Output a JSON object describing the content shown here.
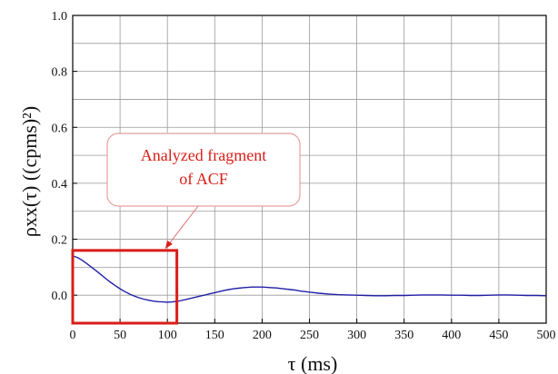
{
  "chart_data": {
    "type": "line",
    "xlim": [
      0,
      500
    ],
    "ylim": [
      -0.1,
      1.0
    ],
    "x_ticks": [
      0,
      50,
      100,
      150,
      200,
      250,
      300,
      350,
      400,
      450,
      500
    ],
    "x_tick_labels": [
      "0",
      "50",
      "100",
      "150",
      "200",
      "250",
      "300",
      "350",
      "400",
      "450",
      "500"
    ],
    "y_ticks": [
      0.0,
      0.2,
      0.4,
      0.6,
      0.8,
      1.0
    ],
    "y_tick_labels": [
      "0.0",
      "0.2",
      "0.4",
      "0.6",
      "0.8",
      "1.0"
    ],
    "grid": true,
    "xlabel": "τ (ms)",
    "ylabel": "ρxx(τ) ((cpms)²)",
    "series": [
      {
        "color": "#1f1fa8",
        "x": [
          0,
          5,
          10,
          15,
          20,
          25,
          30,
          35,
          40,
          45,
          50,
          55,
          60,
          65,
          70,
          75,
          80,
          85,
          90,
          95,
          100,
          105,
          110,
          115,
          120,
          125,
          130,
          135,
          140,
          145,
          150,
          155,
          160,
          165,
          170,
          175,
          180,
          185,
          190,
          195,
          200,
          205,
          210,
          215,
          220,
          225,
          230,
          235,
          240,
          245,
          250,
          260,
          270,
          280,
          290,
          300,
          310,
          320,
          330,
          340,
          350,
          360,
          370,
          380,
          390,
          400,
          410,
          420,
          430,
          440,
          450,
          460,
          470,
          480,
          490,
          500
        ],
        "y": [
          0.14,
          0.135,
          0.125,
          0.113,
          0.1,
          0.087,
          0.073,
          0.059,
          0.046,
          0.034,
          0.023,
          0.013,
          0.004,
          -0.003,
          -0.009,
          -0.014,
          -0.018,
          -0.021,
          -0.023,
          -0.024,
          -0.025,
          -0.024,
          -0.022,
          -0.019,
          -0.015,
          -0.011,
          -0.007,
          -0.003,
          0.001,
          0.005,
          0.009,
          0.013,
          0.017,
          0.02,
          0.023,
          0.025,
          0.027,
          0.028,
          0.029,
          0.029,
          0.029,
          0.028,
          0.027,
          0.026,
          0.024,
          0.022,
          0.02,
          0.018,
          0.015,
          0.013,
          0.011,
          0.007,
          0.004,
          0.002,
          0.001,
          0.0,
          -0.001,
          -0.002,
          -0.002,
          -0.001,
          -0.001,
          0.0,
          0.001,
          0.001,
          0.001,
          0.0,
          0.0,
          -0.001,
          -0.001,
          0.0,
          0.001,
          0.001,
          0.0,
          -0.001,
          -0.001,
          -0.002
        ]
      }
    ],
    "annotation": {
      "text_lines": [
        "Analyzed fragment",
        "of ACF"
      ],
      "color": "#d91e18",
      "fragment_x_range": [
        0,
        110
      ],
      "fragment_y_range": [
        -0.1,
        0.16
      ]
    }
  }
}
